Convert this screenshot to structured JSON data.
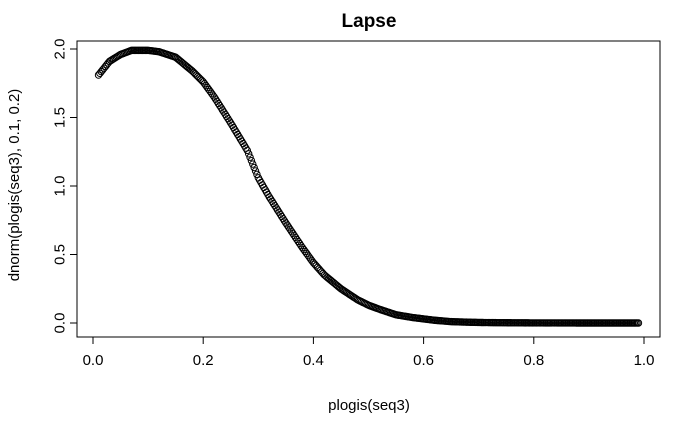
{
  "chart_data": {
    "type": "scatter",
    "title": "Lapse",
    "xlabel": "plogis(seq3)",
    "ylabel": "dnorm(plogis(seq3), 0.1, 0.2)",
    "xlim": [
      0,
      1
    ],
    "ylim": [
      0,
      2
    ],
    "xticks": [
      0.0,
      0.2,
      0.4,
      0.6,
      0.8,
      1.0
    ],
    "xtick_labels": [
      "0.0",
      "0.2",
      "0.4",
      "0.6",
      "0.8",
      "1.0"
    ],
    "yticks": [
      0.0,
      0.5,
      1.0,
      1.5,
      2.0
    ],
    "ytick_labels": [
      "0.0",
      "0.5",
      "1.0",
      "1.5",
      "2.0"
    ],
    "grid": false,
    "marker": "open-circle",
    "x": [
      0.01,
      0.02,
      0.03,
      0.05,
      0.07,
      0.1,
      0.12,
      0.15,
      0.18,
      0.2,
      0.22,
      0.25,
      0.28,
      0.3,
      0.32,
      0.35,
      0.38,
      0.4,
      0.42,
      0.45,
      0.48,
      0.5,
      0.52,
      0.55,
      0.58,
      0.6,
      0.62,
      0.65,
      0.68,
      0.7,
      0.72,
      0.75,
      0.78,
      0.8,
      0.82,
      0.85,
      0.88,
      0.9,
      0.92,
      0.95,
      0.97,
      0.99
    ],
    "y": [
      1.81,
      1.86,
      1.91,
      1.96,
      1.99,
      1.99,
      1.98,
      1.94,
      1.84,
      1.76,
      1.65,
      1.46,
      1.26,
      1.06,
      0.92,
      0.73,
      0.55,
      0.44,
      0.35,
      0.25,
      0.17,
      0.13,
      0.1,
      0.06,
      0.04,
      0.03,
      0.02,
      0.01,
      0.006,
      0.004,
      0.003,
      0.002,
      0.001,
      0.0007,
      0.0004,
      0.0002,
      0.0001,
      0.0001,
      0.0,
      0.0,
      0.0,
      0.0
    ]
  }
}
